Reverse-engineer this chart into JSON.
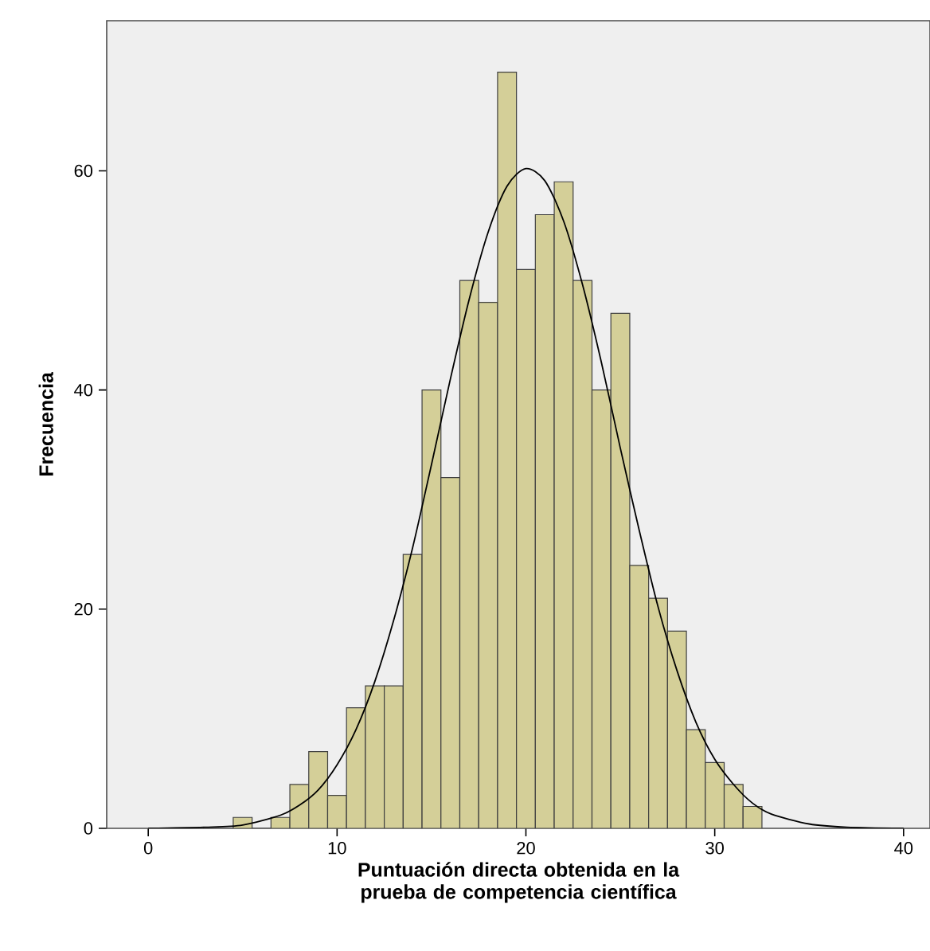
{
  "chart_data": {
    "type": "histogram",
    "xlabel": "Puntuación directa obtenida en la prueba de competencia científica",
    "ylabel": "Frecuencia",
    "series": [
      {
        "type": "histogram",
        "color": "#d4cf98",
        "bins": [
          4.5,
          5.5,
          6.5,
          7.5,
          8.5,
          9.5,
          10.5,
          11.5,
          12.5,
          13.5,
          14.5,
          15.5,
          16.5,
          17.5,
          18.5,
          19.5,
          20.5,
          21.5,
          22.5,
          23.5,
          24.5,
          25.5,
          26.5,
          27.5,
          28.5,
          29.5,
          30.5,
          31.5,
          32.5
        ],
        "values": [
          1,
          0,
          1,
          4,
          7,
          3,
          11,
          13,
          13,
          25,
          40,
          32,
          50,
          48,
          69,
          51,
          56,
          59,
          50,
          40,
          47,
          24,
          21,
          18,
          9,
          6,
          4,
          2
        ]
      },
      {
        "type": "line",
        "color": "#000000",
        "x": [
          0,
          3,
          5,
          7,
          8,
          9,
          10,
          11,
          12,
          13,
          14,
          15,
          16,
          17,
          18,
          19,
          20,
          21,
          22,
          23,
          24,
          25,
          26,
          27,
          28,
          29,
          30,
          31,
          32,
          33,
          35,
          37,
          40
        ],
        "values": [
          0,
          0.1,
          0.3,
          1.2,
          2.1,
          3.5,
          5.8,
          9,
          13.4,
          19,
          25.6,
          33.2,
          41,
          48.3,
          54.4,
          58.6,
          60.2,
          59.1,
          55.4,
          49.6,
          42.5,
          34.7,
          27.2,
          20.2,
          14.4,
          9.7,
          6.3,
          4,
          2.3,
          1.3,
          0.4,
          0.1,
          0
        ]
      }
    ],
    "xlim": [
      -2.2,
      41.4
    ],
    "ylim": [
      0,
      73.7
    ],
    "xticks": [
      0,
      10,
      20,
      30,
      40
    ],
    "yticks": [
      0,
      20,
      40,
      60
    ],
    "grid": false,
    "marker": "none",
    "line_style": "solid"
  }
}
